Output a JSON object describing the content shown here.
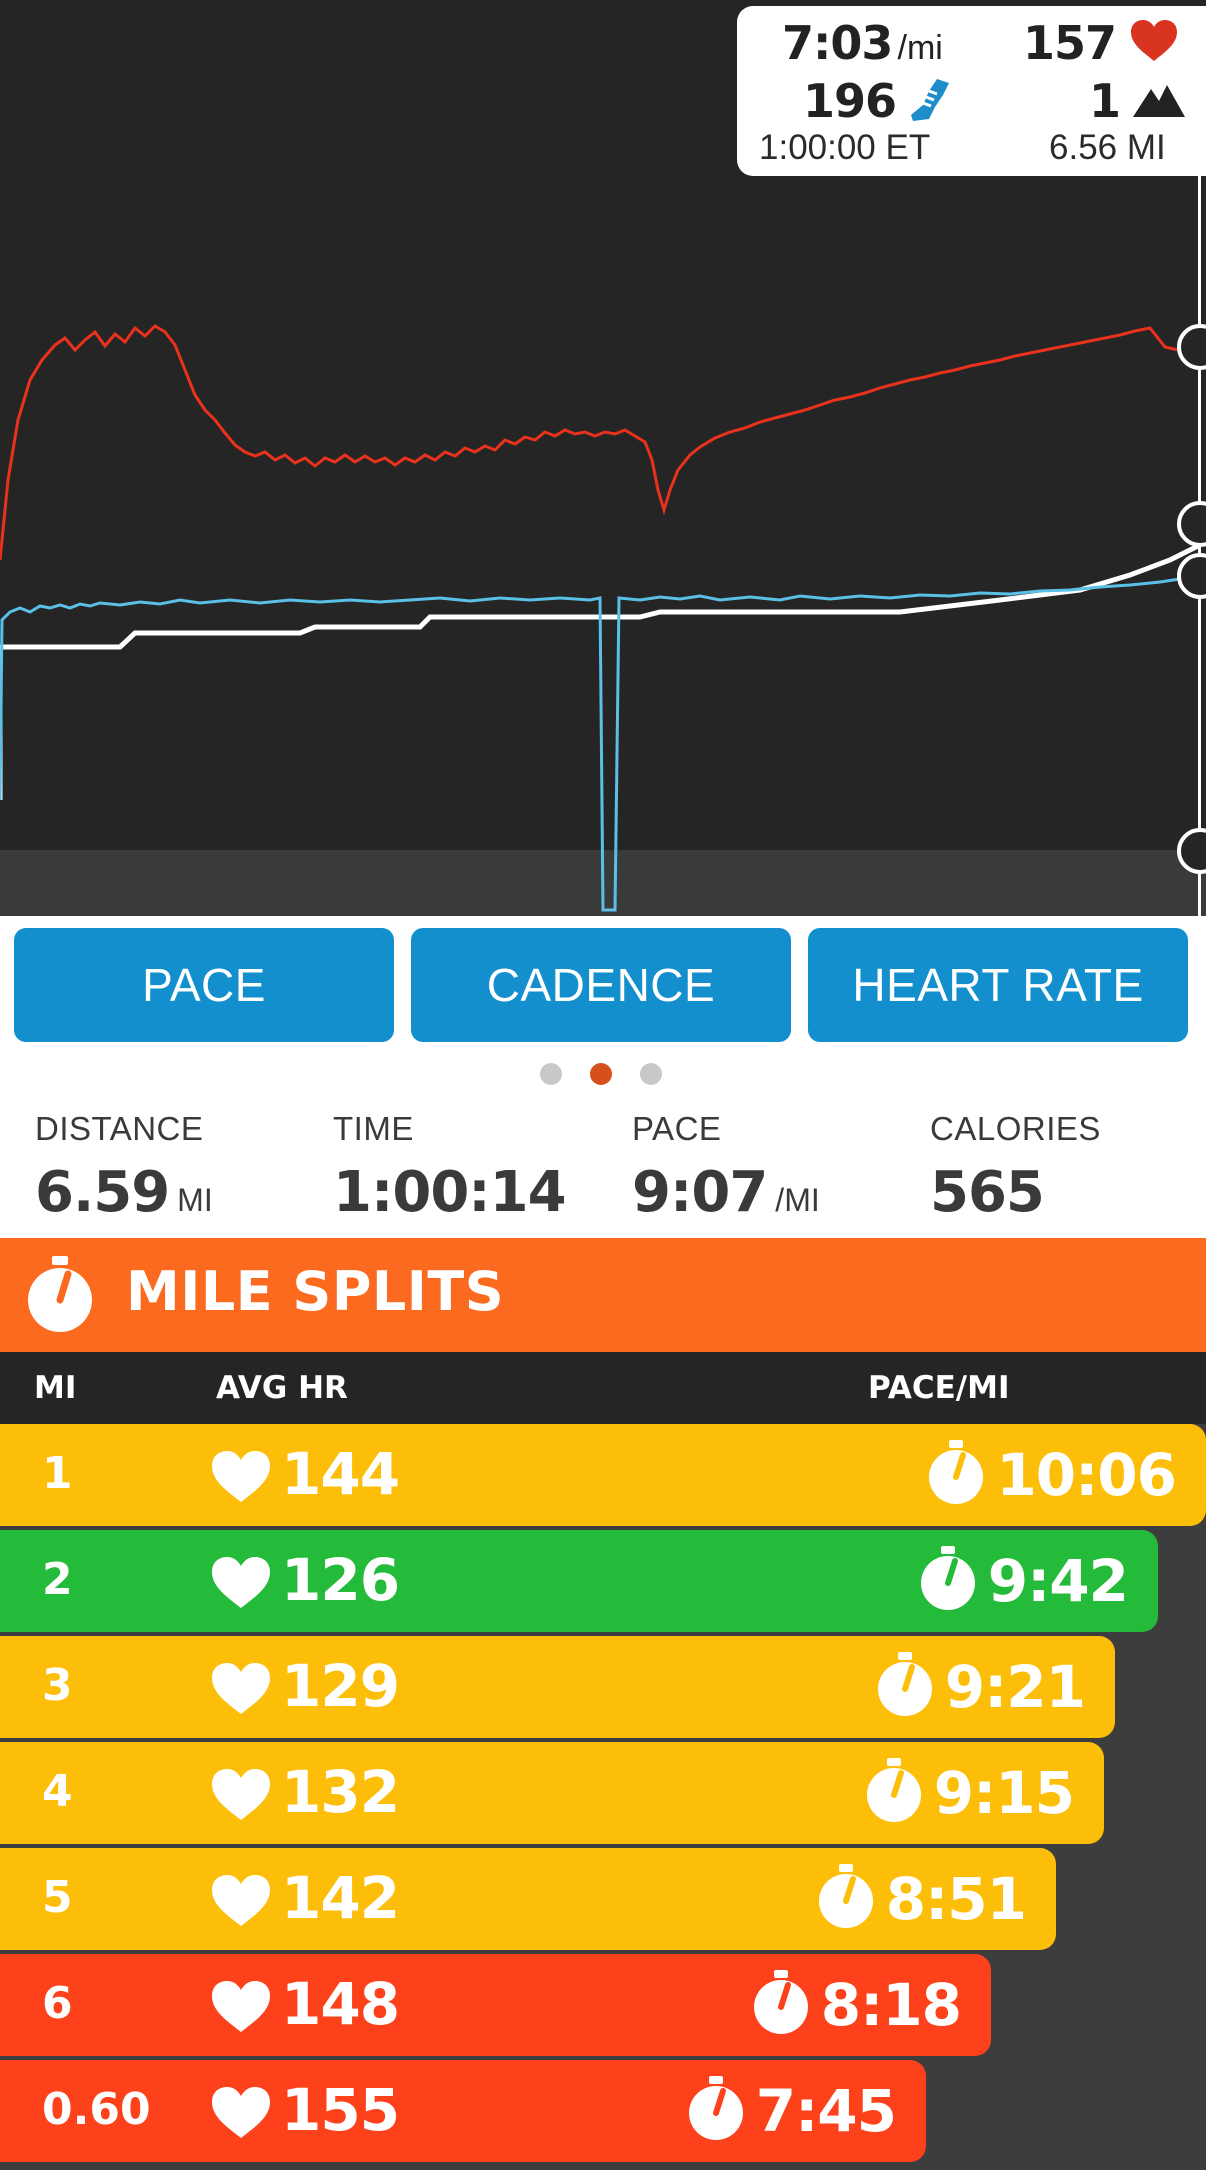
{
  "readout": {
    "pace_value": "7:03",
    "pace_unit": "/mi",
    "heart_rate": "157",
    "cadence": "196",
    "elevation": "1",
    "elapsed": "1:00:00 ET",
    "distance": "6.56 MI",
    "colors": {
      "heart": "#d9341f",
      "shoe": "#1d8ec9",
      "mountain": "#222222"
    }
  },
  "metric_buttons": [
    "PACE",
    "CADENCE",
    "HEART RATE"
  ],
  "page_indicator": {
    "count": 3,
    "active": 2
  },
  "summary": {
    "distance": {
      "label": "DISTANCE",
      "value": "6.59",
      "unit": "MI"
    },
    "time": {
      "label": "TIME",
      "value": "1:00:14"
    },
    "pace": {
      "label": "PACE",
      "value": "9:07",
      "unit": "/MI"
    },
    "calories": {
      "label": "CALORIES",
      "value": "565"
    }
  },
  "splits": {
    "title": "MILE SPLITS",
    "columns": {
      "mi": "MI",
      "avg_hr": "AVG HR",
      "pace": "PACE/MI"
    },
    "rows": [
      {
        "mi": "1",
        "hr": "144",
        "pace": "10:06",
        "color": "#fcbe08"
      },
      {
        "mi": "2",
        "hr": "126",
        "pace": "9:42",
        "color": "#23bb39"
      },
      {
        "mi": "3",
        "hr": "129",
        "pace": "9:21",
        "color": "#fcbe08"
      },
      {
        "mi": "4",
        "hr": "132",
        "pace": "9:15",
        "color": "#fcbe08"
      },
      {
        "mi": "5",
        "hr": "142",
        "pace": "8:51",
        "color": "#fcbe08"
      },
      {
        "mi": "6",
        "hr": "148",
        "pace": "8:18",
        "color": "#fc411b"
      },
      {
        "mi": "0.60",
        "hr": "155",
        "pace": "7:45",
        "color": "#fc411b"
      }
    ]
  },
  "colors": {
    "accent_blue": "#128fcc",
    "splits_orange": "#fb6a1f",
    "dot_active": "#d5501a"
  }
}
